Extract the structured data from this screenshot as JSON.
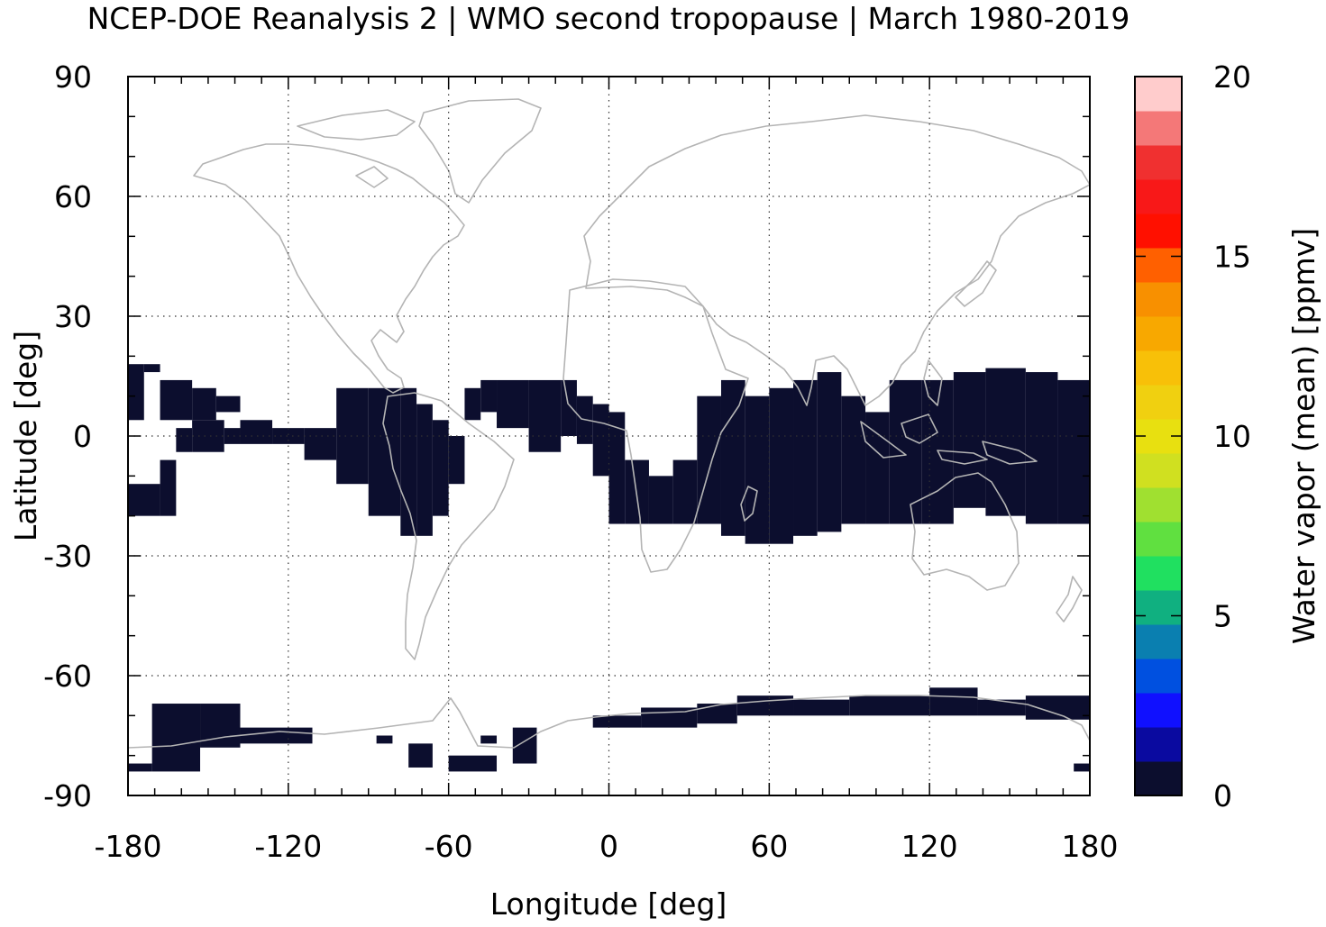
{
  "chart_data": {
    "type": "heatmap",
    "title": "NCEP-DOE Reanalysis 2 | WMO second tropopause | March 1980-2019",
    "xlabel": "Longitude [deg]",
    "ylabel": "Latitude [deg]",
    "xlim": [
      -180,
      180
    ],
    "ylim": [
      -90,
      90
    ],
    "xticks": [
      "-180",
      "-120",
      "-60",
      "0",
      "60",
      "120",
      "180"
    ],
    "yticks": [
      "90",
      "60",
      "30",
      "0",
      "-30",
      "-60",
      "-90"
    ],
    "grid": true,
    "colorbar": {
      "label": "Water vapor (mean) [ppmv]",
      "range": [
        0,
        20
      ],
      "ticks": [
        "20",
        "15",
        "10",
        "5",
        "0"
      ],
      "colors": [
        "#0c0e2e",
        "#0a0aa0",
        "#1010ff",
        "#0050e0",
        "#0a7fb0",
        "#10b080",
        "#20e060",
        "#60e040",
        "#a0e030",
        "#d0e020",
        "#e8e010",
        "#f0d010",
        "#f8c008",
        "#f8a800",
        "#f89000",
        "#ff6000",
        "#ff1000",
        "#f81818",
        "#f03030",
        "#f47878",
        "#ffcccc"
      ]
    },
    "regions": [
      {
        "value_range": "0-1 ppmv",
        "lat": [
          -25,
          17
        ],
        "lon": [
          -180,
          180
        ],
        "description": "tropical band (with gaps)"
      },
      {
        "value_range": "0-1 ppmv",
        "lat": [
          -85,
          -67
        ],
        "lon": [
          -180,
          180
        ],
        "description": "Antarctic coastal band (patchy)"
      }
    ],
    "data_cells": [
      [
        -180,
        -174,
        4,
        18
      ],
      [
        -174,
        -168,
        16,
        18
      ],
      [
        -168,
        -156,
        4,
        14
      ],
      [
        -156,
        -147,
        4,
        12
      ],
      [
        -147,
        -138,
        6,
        10
      ],
      [
        -180,
        -168,
        -20,
        -12
      ],
      [
        -168,
        -162,
        -20,
        -6
      ],
      [
        -162,
        -156,
        -4,
        2
      ],
      [
        -156,
        -144,
        -4,
        4
      ],
      [
        -144,
        -138,
        -2,
        2
      ],
      [
        -138,
        -126,
        -2,
        4
      ],
      [
        -126,
        -114,
        -2,
        2
      ],
      [
        -114,
        -102,
        -6,
        2
      ],
      [
        -102,
        -90,
        -12,
        12
      ],
      [
        -90,
        -78,
        -20,
        12
      ],
      [
        -78,
        -72,
        -25,
        12
      ],
      [
        -72,
        -66,
        -25,
        8
      ],
      [
        -66,
        -60,
        -20,
        4
      ],
      [
        -60,
        -54,
        -12,
        0
      ],
      [
        -54,
        -48,
        4,
        12
      ],
      [
        -48,
        -42,
        6,
        14
      ],
      [
        -42,
        -30,
        2,
        14
      ],
      [
        -30,
        -18,
        -4,
        14
      ],
      [
        -18,
        -12,
        0,
        14
      ],
      [
        -12,
        -6,
        -2,
        10
      ],
      [
        -6,
        0,
        -10,
        8
      ],
      [
        0,
        6,
        -22,
        6
      ],
      [
        6,
        15,
        -22,
        -6
      ],
      [
        15,
        24,
        -22,
        -10
      ],
      [
        24,
        33,
        -22,
        -6
      ],
      [
        33,
        42,
        -22,
        10
      ],
      [
        42,
        51,
        -25,
        14
      ],
      [
        51,
        60,
        -27,
        10
      ],
      [
        60,
        69,
        -27,
        12
      ],
      [
        69,
        78,
        -25,
        14
      ],
      [
        78,
        87,
        -24,
        16
      ],
      [
        87,
        96,
        -22,
        10
      ],
      [
        96,
        105,
        -22,
        6
      ],
      [
        105,
        117,
        -22,
        14
      ],
      [
        117,
        129,
        -22,
        14
      ],
      [
        129,
        141,
        -18,
        16
      ],
      [
        141,
        156,
        -20,
        17
      ],
      [
        156,
        168,
        -22,
        16
      ],
      [
        168,
        180,
        -22,
        14
      ],
      [
        -180,
        -171,
        -84,
        -82
      ],
      [
        -171,
        -153,
        -84,
        -67
      ],
      [
        -153,
        -138,
        -78,
        -67
      ],
      [
        -138,
        -111,
        -77,
        -73
      ],
      [
        -87,
        -81,
        -77,
        -75
      ],
      [
        -75,
        -66,
        -83,
        -77
      ],
      [
        -60,
        -42,
        -84,
        -80
      ],
      [
        -48,
        -42,
        -77,
        -75
      ],
      [
        -36,
        -27,
        -82,
        -73
      ],
      [
        -6,
        12,
        -73,
        -70
      ],
      [
        12,
        33,
        -73,
        -68
      ],
      [
        33,
        48,
        -72,
        -67
      ],
      [
        48,
        69,
        -70,
        -65
      ],
      [
        69,
        90,
        -70,
        -66
      ],
      [
        90,
        120,
        -70,
        -65
      ],
      [
        120,
        138,
        -70,
        -63
      ],
      [
        138,
        156,
        -70,
        -66
      ],
      [
        156,
        180,
        -71,
        -65
      ],
      [
        174,
        180,
        -84,
        -82
      ]
    ]
  }
}
